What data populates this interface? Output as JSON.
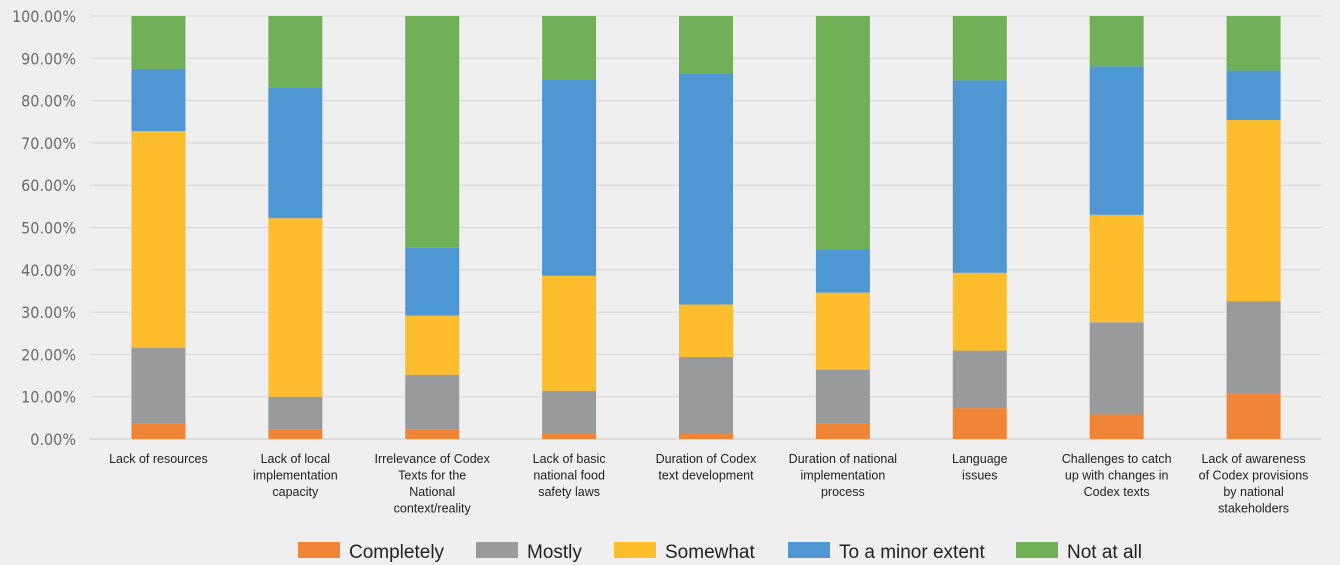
{
  "chart_data": {
    "type": "bar",
    "stacked": true,
    "title": "",
    "xlabel": "",
    "ylabel": "",
    "ylim": [
      0,
      100
    ],
    "ytick_step": 10,
    "ytick_format": "0.00%",
    "grid": "horizontal",
    "legend_position": "bottom",
    "categories": [
      [
        "Lack of resources"
      ],
      [
        "Lack of local",
        "implementation",
        "capacity"
      ],
      [
        "Irrelevance of Codex",
        "Texts for the",
        "National",
        "context/reality"
      ],
      [
        "Lack of basic",
        "national food",
        "safety laws"
      ],
      [
        "Duration of Codex",
        "text development"
      ],
      [
        "Duration of national",
        "implementation",
        "process"
      ],
      [
        "Language",
        "issues"
      ],
      [
        "Challenges to catch",
        "up with changes in",
        "Codex texts"
      ],
      [
        "Lack of awareness",
        "of Codex provisions",
        "by national",
        "stakeholders"
      ]
    ],
    "series": [
      {
        "name": "Completely",
        "color": "#f08437",
        "values": [
          3.6,
          2.2,
          2.2,
          1.2,
          1.2,
          3.6,
          7.3,
          5.8,
          10.8
        ]
      },
      {
        "name": "Mostly",
        "color": "#989a9c",
        "values": [
          18.0,
          7.8,
          13.0,
          10.2,
          18.2,
          12.8,
          13.6,
          21.8,
          21.8
        ]
      },
      {
        "name": "Somewhat",
        "color": "#fdbd2c",
        "values": [
          51.2,
          42.2,
          14.0,
          27.2,
          12.4,
          18.2,
          18.4,
          25.4,
          42.8
        ]
      },
      {
        "name": "To a minor extent",
        "color": "#4e97d3",
        "values": [
          14.7,
          30.8,
          16.0,
          46.4,
          54.6,
          10.2,
          45.5,
          35.1,
          11.7
        ]
      },
      {
        "name": "Not at all",
        "color": "#70b158",
        "values": [
          12.5,
          17.0,
          54.8,
          15.0,
          13.6,
          55.2,
          15.2,
          11.9,
          12.9
        ]
      }
    ]
  }
}
